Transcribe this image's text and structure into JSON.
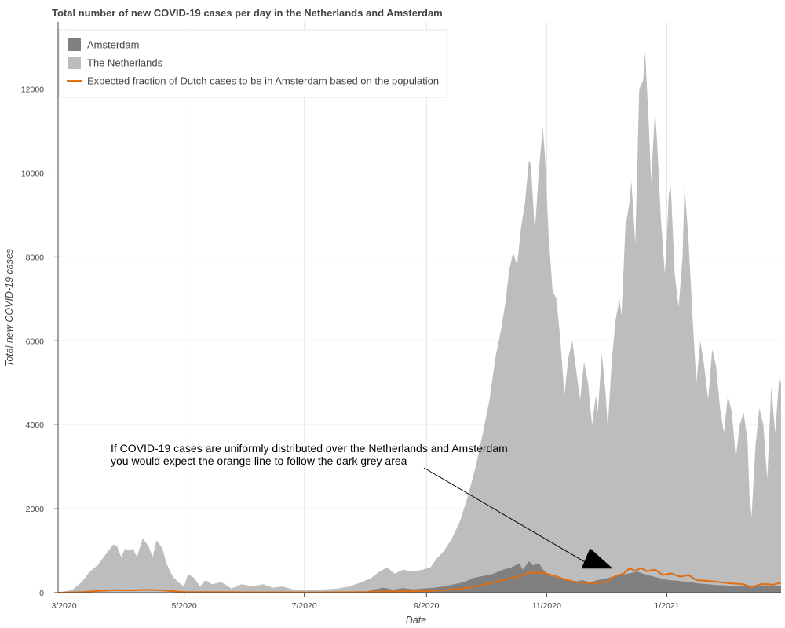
{
  "chart_data": {
    "type": "area",
    "title": "Total number of new COVID-19 cases per day in the Netherlands and Amsterdam",
    "xlabel": "Date",
    "ylabel": "Total new COVID-19 cases",
    "x_ticks": [
      {
        "date": "2020-03-01",
        "label": "3/2020"
      },
      {
        "date": "2020-05-01",
        "label": "5/2020"
      },
      {
        "date": "2020-07-01",
        "label": "7/2020"
      },
      {
        "date": "2020-09-01",
        "label": "9/2020"
      },
      {
        "date": "2020-11-01",
        "label": "11/2020"
      },
      {
        "date": "2021-01-01",
        "label": "1/2021"
      }
    ],
    "y_ticks": [
      0,
      2000,
      4000,
      6000,
      8000,
      10000,
      12000
    ],
    "xlim": [
      "2020-02-27",
      "2021-02-28"
    ],
    "ylim": [
      0,
      13600
    ],
    "grid": true,
    "legend_position": "top-left",
    "series": [
      {
        "name": "The Netherlands",
        "kind": "area",
        "color": "#bdbdbd",
        "points": [
          [
            "2020-02-27",
            0
          ],
          [
            "2020-03-05",
            60
          ],
          [
            "2020-03-10",
            250
          ],
          [
            "2020-03-14",
            500
          ],
          [
            "2020-03-18",
            650
          ],
          [
            "2020-03-22",
            900
          ],
          [
            "2020-03-26",
            1150
          ],
          [
            "2020-03-28",
            1100
          ],
          [
            "2020-03-30",
            850
          ],
          [
            "2020-04-01",
            1050
          ],
          [
            "2020-04-03",
            1000
          ],
          [
            "2020-04-05",
            1050
          ],
          [
            "2020-04-07",
            850
          ],
          [
            "2020-04-10",
            1300
          ],
          [
            "2020-04-13",
            1100
          ],
          [
            "2020-04-15",
            850
          ],
          [
            "2020-04-17",
            1250
          ],
          [
            "2020-04-20",
            1050
          ],
          [
            "2020-04-22",
            700
          ],
          [
            "2020-04-25",
            400
          ],
          [
            "2020-04-28",
            250
          ],
          [
            "2020-05-01",
            150
          ],
          [
            "2020-05-03",
            450
          ],
          [
            "2020-05-06",
            350
          ],
          [
            "2020-05-09",
            150
          ],
          [
            "2020-05-12",
            300
          ],
          [
            "2020-05-15",
            200
          ],
          [
            "2020-05-20",
            250
          ],
          [
            "2020-05-25",
            100
          ],
          [
            "2020-05-30",
            200
          ],
          [
            "2020-06-05",
            150
          ],
          [
            "2020-06-10",
            200
          ],
          [
            "2020-06-15",
            120
          ],
          [
            "2020-06-20",
            150
          ],
          [
            "2020-06-25",
            80
          ],
          [
            "2020-07-01",
            50
          ],
          [
            "2020-07-06",
            70
          ],
          [
            "2020-07-12",
            80
          ],
          [
            "2020-07-18",
            100
          ],
          [
            "2020-07-24",
            150
          ],
          [
            "2020-07-30",
            250
          ],
          [
            "2020-08-04",
            350
          ],
          [
            "2020-08-08",
            500
          ],
          [
            "2020-08-12",
            600
          ],
          [
            "2020-08-16",
            450
          ],
          [
            "2020-08-20",
            550
          ],
          [
            "2020-08-25",
            500
          ],
          [
            "2020-08-30",
            550
          ],
          [
            "2020-09-03",
            600
          ],
          [
            "2020-09-06",
            800
          ],
          [
            "2020-09-10",
            1000
          ],
          [
            "2020-09-14",
            1300
          ],
          [
            "2020-09-18",
            1700
          ],
          [
            "2020-09-22",
            2300
          ],
          [
            "2020-09-26",
            3000
          ],
          [
            "2020-09-30",
            3900
          ],
          [
            "2020-10-03",
            4600
          ],
          [
            "2020-10-06",
            5600
          ],
          [
            "2020-10-09",
            6300
          ],
          [
            "2020-10-11",
            6900
          ],
          [
            "2020-10-13",
            7700
          ],
          [
            "2020-10-15",
            8100
          ],
          [
            "2020-10-17",
            7800
          ],
          [
            "2020-10-19",
            8700
          ],
          [
            "2020-10-21",
            9300
          ],
          [
            "2020-10-23",
            10300
          ],
          [
            "2020-10-24",
            10200
          ],
          [
            "2020-10-26",
            8600
          ],
          [
            "2020-10-28",
            10000
          ],
          [
            "2020-10-30",
            11100
          ],
          [
            "2020-10-31",
            10500
          ],
          [
            "2020-11-02",
            8500
          ],
          [
            "2020-11-04",
            7200
          ],
          [
            "2020-11-06",
            7000
          ],
          [
            "2020-11-08",
            6000
          ],
          [
            "2020-11-10",
            4700
          ],
          [
            "2020-11-12",
            5600
          ],
          [
            "2020-11-14",
            6000
          ],
          [
            "2020-11-16",
            5300
          ],
          [
            "2020-11-18",
            4600
          ],
          [
            "2020-11-20",
            5500
          ],
          [
            "2020-11-22",
            5000
          ],
          [
            "2020-11-24",
            4000
          ],
          [
            "2020-11-26",
            4700
          ],
          [
            "2020-11-27",
            4300
          ],
          [
            "2020-11-29",
            5700
          ],
          [
            "2020-12-01",
            4700
          ],
          [
            "2020-12-02",
            3900
          ],
          [
            "2020-12-04",
            5500
          ],
          [
            "2020-12-06",
            6500
          ],
          [
            "2020-12-08",
            7000
          ],
          [
            "2020-12-09",
            6600
          ],
          [
            "2020-12-11",
            8700
          ],
          [
            "2020-12-13",
            9300
          ],
          [
            "2020-12-14",
            9800
          ],
          [
            "2020-12-16",
            8300
          ],
          [
            "2020-12-18",
            12000
          ],
          [
            "2020-12-20",
            12200
          ],
          [
            "2020-12-21",
            12900
          ],
          [
            "2020-12-23",
            11000
          ],
          [
            "2020-12-24",
            9800
          ],
          [
            "2020-12-26",
            11500
          ],
          [
            "2020-12-27",
            10800
          ],
          [
            "2020-12-29",
            8900
          ],
          [
            "2020-12-31",
            7600
          ],
          [
            "2021-01-01",
            8400
          ],
          [
            "2021-01-02",
            9500
          ],
          [
            "2021-01-03",
            9700
          ],
          [
            "2021-01-05",
            7600
          ],
          [
            "2021-01-07",
            6800
          ],
          [
            "2021-01-09",
            8000
          ],
          [
            "2021-01-10",
            9700
          ],
          [
            "2021-01-12",
            8400
          ],
          [
            "2021-01-14",
            6600
          ],
          [
            "2021-01-16",
            5000
          ],
          [
            "2021-01-18",
            6000
          ],
          [
            "2021-01-20",
            5400
          ],
          [
            "2021-01-22",
            4600
          ],
          [
            "2021-01-24",
            5800
          ],
          [
            "2021-01-26",
            5400
          ],
          [
            "2021-01-28",
            4400
          ],
          [
            "2021-01-30",
            3800
          ],
          [
            "2021-02-01",
            4700
          ],
          [
            "2021-02-03",
            4300
          ],
          [
            "2021-02-05",
            3200
          ],
          [
            "2021-02-07",
            4000
          ],
          [
            "2021-02-09",
            4300
          ],
          [
            "2021-02-11",
            3600
          ],
          [
            "2021-02-12",
            2300
          ],
          [
            "2021-02-13",
            1800
          ],
          [
            "2021-02-15",
            3500
          ],
          [
            "2021-02-17",
            4400
          ],
          [
            "2021-02-19",
            4000
          ],
          [
            "2021-02-21",
            2700
          ],
          [
            "2021-02-23",
            4900
          ],
          [
            "2021-02-25",
            3800
          ],
          [
            "2021-02-27",
            5100
          ],
          [
            "2021-02-28",
            5000
          ]
        ]
      },
      {
        "name": "Amsterdam",
        "kind": "area",
        "color": "#808080",
        "points": [
          [
            "2020-02-27",
            0
          ],
          [
            "2020-08-01",
            20
          ],
          [
            "2020-08-06",
            80
          ],
          [
            "2020-08-10",
            120
          ],
          [
            "2020-08-15",
            70
          ],
          [
            "2020-08-20",
            110
          ],
          [
            "2020-08-25",
            80
          ],
          [
            "2020-08-30",
            100
          ],
          [
            "2020-09-05",
            120
          ],
          [
            "2020-09-10",
            150
          ],
          [
            "2020-09-15",
            200
          ],
          [
            "2020-09-20",
            250
          ],
          [
            "2020-09-25",
            350
          ],
          [
            "2020-09-30",
            400
          ],
          [
            "2020-10-05",
            450
          ],
          [
            "2020-10-10",
            550
          ],
          [
            "2020-10-14",
            600
          ],
          [
            "2020-10-18",
            700
          ],
          [
            "2020-10-20",
            550
          ],
          [
            "2020-10-23",
            750
          ],
          [
            "2020-10-25",
            650
          ],
          [
            "2020-10-28",
            700
          ],
          [
            "2020-10-31",
            500
          ],
          [
            "2020-11-03",
            400
          ],
          [
            "2020-11-07",
            350
          ],
          [
            "2020-11-11",
            300
          ],
          [
            "2020-11-15",
            250
          ],
          [
            "2020-11-19",
            300
          ],
          [
            "2020-11-23",
            250
          ],
          [
            "2020-11-27",
            300
          ],
          [
            "2020-12-02",
            350
          ],
          [
            "2020-12-07",
            400
          ],
          [
            "2020-12-12",
            450
          ],
          [
            "2020-12-17",
            500
          ],
          [
            "2020-12-20",
            450
          ],
          [
            "2020-12-24",
            400
          ],
          [
            "2020-12-28",
            350
          ],
          [
            "2021-01-02",
            300
          ],
          [
            "2021-01-07",
            280
          ],
          [
            "2021-01-12",
            250
          ],
          [
            "2021-01-17",
            220
          ],
          [
            "2021-01-22",
            200
          ],
          [
            "2021-01-27",
            180
          ],
          [
            "2021-02-01",
            170
          ],
          [
            "2021-02-06",
            160
          ],
          [
            "2021-02-11",
            150
          ],
          [
            "2021-02-16",
            180
          ],
          [
            "2021-02-21",
            170
          ],
          [
            "2021-02-28",
            160
          ]
        ]
      },
      {
        "name": "Expected fraction of Dutch cases to be in Amsterdam based on the population",
        "kind": "line",
        "color": "#e06d10",
        "points": [
          [
            "2020-02-27",
            0
          ],
          [
            "2020-03-10",
            15
          ],
          [
            "2020-03-20",
            45
          ],
          [
            "2020-03-28",
            60
          ],
          [
            "2020-04-04",
            55
          ],
          [
            "2020-04-12",
            70
          ],
          [
            "2020-04-20",
            55
          ],
          [
            "2020-05-01",
            15
          ],
          [
            "2020-05-15",
            15
          ],
          [
            "2020-06-01",
            10
          ],
          [
            "2020-07-01",
            5
          ],
          [
            "2020-08-01",
            15
          ],
          [
            "2020-08-15",
            30
          ],
          [
            "2020-09-01",
            40
          ],
          [
            "2020-09-10",
            60
          ],
          [
            "2020-09-20",
            100
          ],
          [
            "2020-10-01",
            200
          ],
          [
            "2020-10-10",
            300
          ],
          [
            "2020-10-17",
            380
          ],
          [
            "2020-10-23",
            470
          ],
          [
            "2020-10-30",
            480
          ],
          [
            "2020-11-05",
            400
          ],
          [
            "2020-11-10",
            320
          ],
          [
            "2020-11-15",
            260
          ],
          [
            "2020-11-20",
            240
          ],
          [
            "2020-11-25",
            230
          ],
          [
            "2020-12-01",
            250
          ],
          [
            "2020-12-06",
            400
          ],
          [
            "2020-12-10",
            450
          ],
          [
            "2020-12-13",
            580
          ],
          [
            "2020-12-16",
            520
          ],
          [
            "2020-12-19",
            590
          ],
          [
            "2020-12-22",
            510
          ],
          [
            "2020-12-26",
            550
          ],
          [
            "2020-12-30",
            420
          ],
          [
            "2021-01-03",
            460
          ],
          [
            "2021-01-08",
            380
          ],
          [
            "2021-01-12",
            420
          ],
          [
            "2021-01-16",
            300
          ],
          [
            "2021-01-22",
            280
          ],
          [
            "2021-01-28",
            250
          ],
          [
            "2021-02-03",
            220
          ],
          [
            "2021-02-09",
            200
          ],
          [
            "2021-02-13",
            130
          ],
          [
            "2021-02-18",
            210
          ],
          [
            "2021-02-24",
            190
          ],
          [
            "2021-02-28",
            240
          ]
        ]
      }
    ],
    "annotation": {
      "lines": [
        "If COVID-19 cases are uniformly distributed over the Netherlands and Amsterdam",
        "you would expect the orange line to follow the dark grey area"
      ],
      "arrow_target": {
        "date": "2020-11-29",
        "value": 500
      }
    }
  }
}
